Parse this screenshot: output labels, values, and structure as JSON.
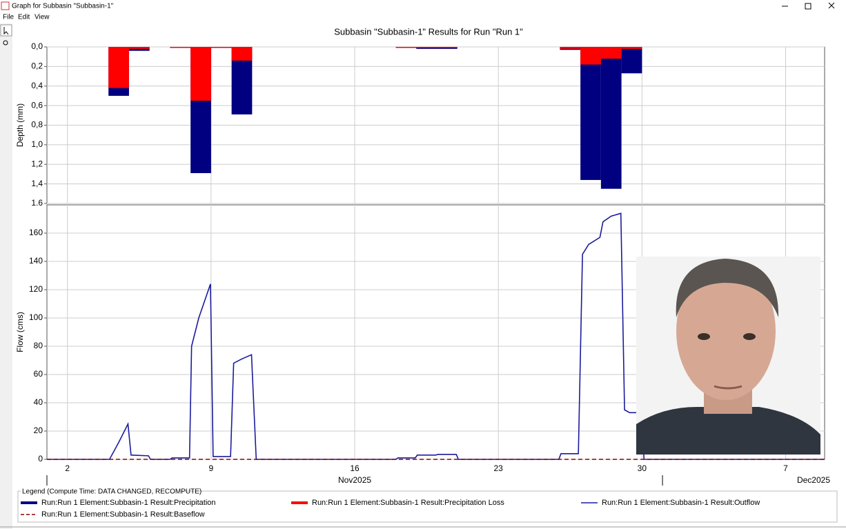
{
  "window": {
    "title": "Graph for Subbasin \"Subbasin-1\"",
    "menu": [
      "File",
      "Edit",
      "View"
    ]
  },
  "graph_title": "Subbasin \"Subbasin-1\" Results for Run \"Run 1\"",
  "legend_title": "Legend (Compute Time: DATA CHANGED, RECOMPUTE)",
  "chart_data": [
    {
      "type": "bar",
      "y_label": "Depth (mm)",
      "y_inverted": true,
      "grid": true,
      "xlim": [
        1,
        38.9
      ],
      "xticks": [
        2,
        9,
        16,
        23,
        30,
        {
          "value": 37,
          "label": "7"
        }
      ],
      "ylim": [
        0,
        1.6
      ],
      "yticks": [
        {
          "value": 0,
          "label": "0,0"
        },
        {
          "value": 0.2,
          "label": "0,2"
        },
        {
          "value": 0.4,
          "label": "0,4"
        },
        {
          "value": 0.6,
          "label": "0,6"
        },
        {
          "value": 0.8,
          "label": "0,8"
        },
        {
          "value": 1.0,
          "label": "1,0"
        },
        {
          "value": 1.2,
          "label": "1,2"
        },
        {
          "value": 1.4,
          "label": "1,4"
        },
        {
          "value": 1.6,
          "label": "1.6"
        }
      ],
      "x": [
        4,
        5,
        7,
        8,
        9,
        10,
        18,
        19,
        20,
        26,
        27,
        28,
        29
      ],
      "series": [
        {
          "name": "Run:Run 1 Element:Subbasin-1 Result:Precipitation",
          "color": "#000080",
          "values": [
            0.5,
            0.04,
            0.01,
            1.29,
            0.01,
            0.69,
            0.01,
            0.02,
            0.02,
            0.03,
            1.36,
            1.45,
            0.27
          ]
        },
        {
          "name": "Run:Run 1 Element:Subbasin-1 Result:Precipitation Loss",
          "color": "#ff0000",
          "values": [
            0.42,
            0.02,
            0.01,
            0.55,
            0.01,
            0.14,
            0.01,
            0.01,
            0.01,
            0.02,
            0.18,
            0.12,
            0.02
          ]
        }
      ]
    },
    {
      "type": "line",
      "y_label": "Flow (cms)",
      "grid": true,
      "xlim": [
        1,
        38.9
      ],
      "xticks": [
        2,
        9,
        16,
        23,
        30,
        {
          "value": 37,
          "label": "7"
        }
      ],
      "x_groups": [
        {
          "start": 1,
          "label": "Nov2025"
        },
        {
          "start": 31,
          "label": "Dec2025"
        }
      ],
      "ylim": [
        0,
        180
      ],
      "yticks": [
        0,
        20,
        40,
        60,
        80,
        100,
        120,
        140,
        160
      ],
      "series": [
        {
          "name": "Run:Run 1 Element:Subbasin-1 Result:Outflow",
          "color": "#1a1a9c",
          "x": [
            1,
            4.05,
            4.5,
            4.95,
            5.1,
            5.95,
            6.05,
            7,
            7.1,
            7.95,
            8.05,
            8.4,
            8.97,
            9.1,
            9.95,
            10.1,
            10.5,
            10.97,
            11.2,
            18,
            18.1,
            18.95,
            19.05,
            19.95,
            20.05,
            20.95,
            21.05,
            25.95,
            26.05,
            26.9,
            27.1,
            27.4,
            27.95,
            28.1,
            28.5,
            28.97,
            29.15,
            29.4,
            29.97,
            30.1,
            38.9
          ],
          "values": [
            0,
            0,
            12,
            25,
            3,
            2.5,
            0,
            0,
            1,
            1,
            80,
            100,
            124,
            2,
            2,
            68,
            71,
            74,
            0,
            0,
            1,
            1,
            3,
            3,
            3.5,
            3.5,
            0,
            0,
            4,
            4,
            145,
            152,
            157,
            168,
            172,
            174,
            35,
            33,
            33,
            0,
            0
          ]
        },
        {
          "name": "Run:Run 1 Element:Subbasin-1 Result:Baseflow",
          "color": "#8b0000",
          "dashed": true,
          "x": [
            1,
            38.9
          ],
          "values": [
            0,
            0
          ]
        }
      ]
    }
  ]
}
